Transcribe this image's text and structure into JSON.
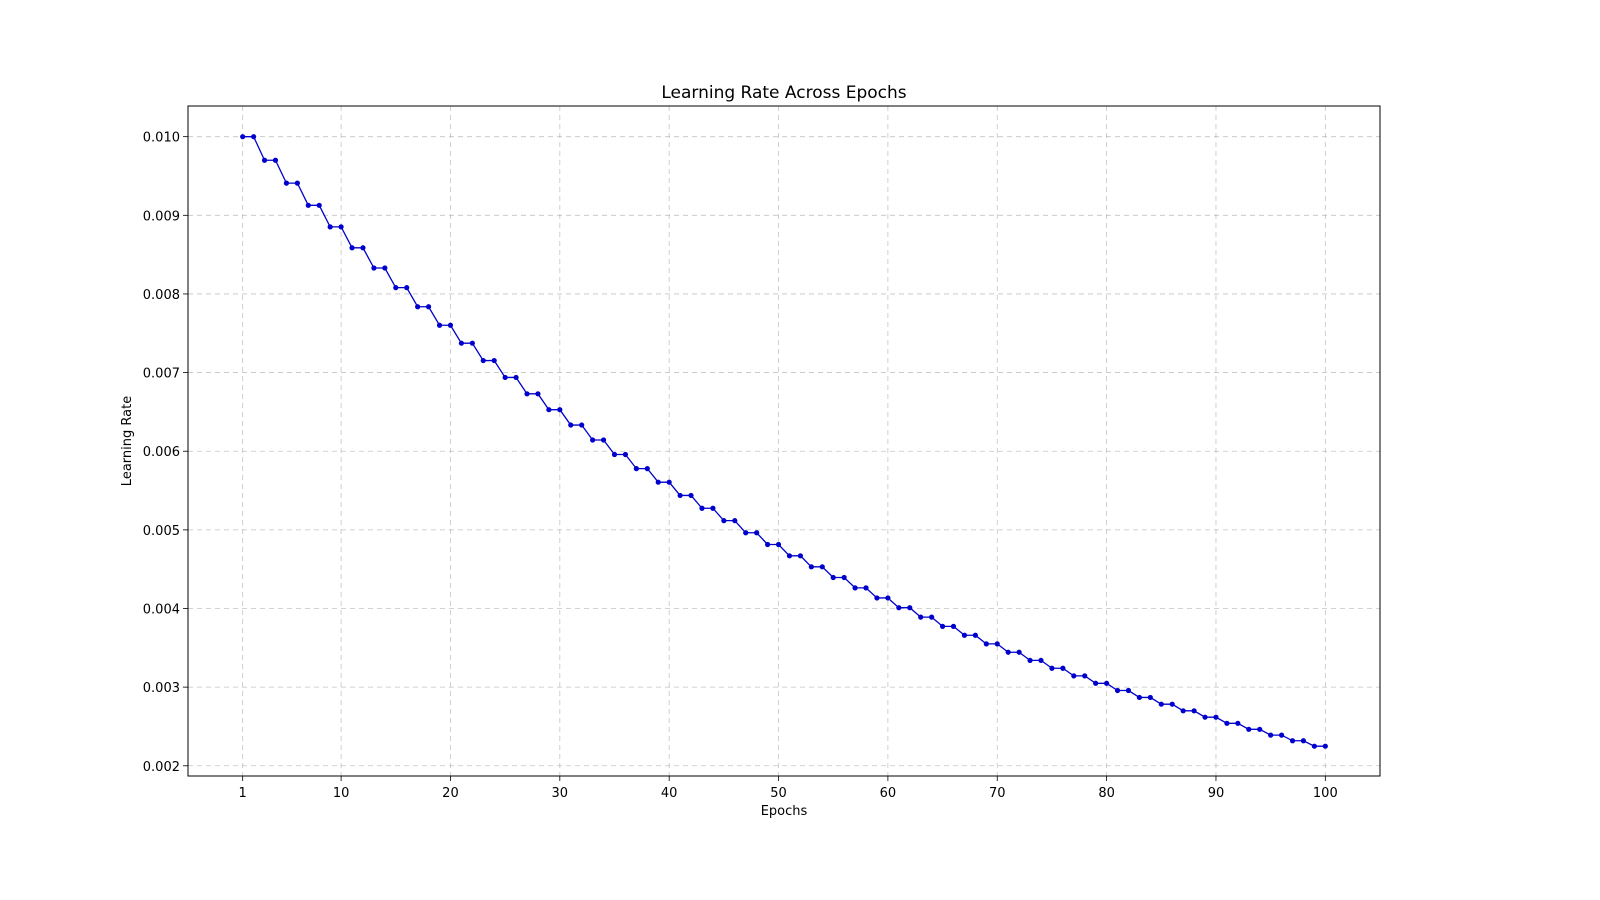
{
  "chart_data": {
    "type": "line",
    "title": "Learning Rate Across Epochs",
    "xlabel": "Epochs",
    "ylabel": "Learning Rate",
    "xlim": [
      -4,
      105
    ],
    "ylim": [
      0.00187,
      0.01039
    ],
    "xticks": [
      1,
      10,
      20,
      30,
      40,
      50,
      60,
      70,
      80,
      90,
      100
    ],
    "xtick_labels": [
      "1",
      "10",
      "20",
      "30",
      "40",
      "50",
      "60",
      "70",
      "80",
      "90",
      "100"
    ],
    "yticks": [
      0.002,
      0.003,
      0.004,
      0.005,
      0.006,
      0.007,
      0.008,
      0.009,
      0.01
    ],
    "ytick_labels": [
      "0.002",
      "0.003",
      "0.004",
      "0.005",
      "0.006",
      "0.007",
      "0.008",
      "0.009",
      "0.010"
    ],
    "grid": true,
    "line_color": "#0000cc",
    "series": [
      {
        "name": "",
        "x": [
          1,
          2,
          3,
          4,
          5,
          6,
          7,
          8,
          9,
          10,
          11,
          12,
          13,
          14,
          15,
          16,
          17,
          18,
          19,
          20,
          21,
          22,
          23,
          24,
          25,
          26,
          27,
          28,
          29,
          30,
          31,
          32,
          33,
          34,
          35,
          36,
          37,
          38,
          39,
          40,
          41,
          42,
          43,
          44,
          45,
          46,
          47,
          48,
          49,
          50,
          51,
          52,
          53,
          54,
          55,
          56,
          57,
          58,
          59,
          60,
          61,
          62,
          63,
          64,
          65,
          66,
          67,
          68,
          69,
          70,
          71,
          72,
          73,
          74,
          75,
          76,
          77,
          78,
          79,
          80,
          81,
          82,
          83,
          84,
          85,
          86,
          87,
          88,
          89,
          90,
          91,
          92,
          93,
          94,
          95,
          96,
          97,
          98,
          99,
          100
        ],
        "values": [
          0.01,
          0.01,
          0.0097,
          0.0097,
          0.009409,
          0.009409,
          0.009127,
          0.009127,
          0.008853,
          0.008853,
          0.008587,
          0.008587,
          0.00833,
          0.00833,
          0.00808,
          0.00808,
          0.007837,
          0.007837,
          0.007602,
          0.007602,
          0.007374,
          0.007374,
          0.007153,
          0.007153,
          0.006938,
          0.006938,
          0.00673,
          0.00673,
          0.006528,
          0.006528,
          0.006333,
          0.006333,
          0.006143,
          0.006143,
          0.005958,
          0.005958,
          0.005779,
          0.005779,
          0.005606,
          0.005606,
          0.005438,
          0.005438,
          0.005275,
          0.005275,
          0.005117,
          0.005117,
          0.004963,
          0.004963,
          0.004814,
          0.004814,
          0.00467,
          0.00467,
          0.00453,
          0.00453,
          0.004394,
          0.004394,
          0.004262,
          0.004262,
          0.004134,
          0.004134,
          0.00401,
          0.00401,
          0.00389,
          0.00389,
          0.003773,
          0.003773,
          0.00366,
          0.00366,
          0.00355,
          0.00355,
          0.003444,
          0.003444,
          0.00334,
          0.00334,
          0.00324,
          0.00324,
          0.003143,
          0.003143,
          0.003049,
          0.003049,
          0.002957,
          0.002957,
          0.002869,
          0.002869,
          0.002783,
          0.002783,
          0.002699,
          0.002699,
          0.002618,
          0.002618,
          0.00254,
          0.00254,
          0.002464,
          0.002464,
          0.00239,
          0.00239,
          0.002318,
          0.002318,
          0.002249,
          0.002249
        ]
      }
    ]
  }
}
